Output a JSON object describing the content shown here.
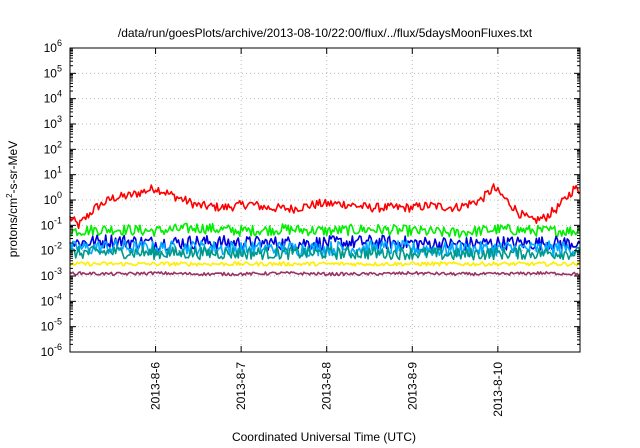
{
  "chart_data": {
    "type": "line",
    "title": "/data/run/goesPlots/archive/2013-08-10/22:00/flux/../flux/5daysMoonFluxes.txt",
    "xlabel": "Coordinated Universal Time (UTC)",
    "ylabel": {
      "prefix": "protons/cm",
      "superscript": "2",
      "suffix": "-s-sr-MeV"
    },
    "y_scale": "log",
    "ylim": [
      1e-06,
      1000000.0
    ],
    "y_ticks": [
      {
        "base": "10",
        "exp": "-6"
      },
      {
        "base": "10",
        "exp": "-5"
      },
      {
        "base": "10",
        "exp": "-4"
      },
      {
        "base": "10",
        "exp": "-3"
      },
      {
        "base": "10",
        "exp": "-2"
      },
      {
        "base": "10",
        "exp": "-1"
      },
      {
        "base": "10",
        "exp": "0"
      },
      {
        "base": "10",
        "exp": "1"
      },
      {
        "base": "10",
        "exp": "2"
      },
      {
        "base": "10",
        "exp": "3"
      },
      {
        "base": "10",
        "exp": "4"
      },
      {
        "base": "10",
        "exp": "5"
      },
      {
        "base": "10",
        "exp": "6"
      }
    ],
    "xlim": [
      "2013-08-05 23:00",
      "2013-08-10 22:00"
    ],
    "x_ticks": [
      "2013-8-6",
      "2013-8-7",
      "2013-8-8",
      "2013-8-9",
      "2013-8-10"
    ],
    "x_tick_values": [
      1,
      2,
      3,
      4,
      5
    ],
    "grid": true,
    "series": [
      {
        "color": "#ff0000",
        "x": [
          0.0,
          0.1,
          0.3,
          0.5,
          0.7,
          1.0,
          1.2,
          1.5,
          1.8,
          2.1,
          2.3,
          2.6,
          2.9,
          3.2,
          3.5,
          3.8,
          4.0,
          4.2,
          4.5,
          4.6,
          4.8,
          4.95,
          5.1,
          5.25,
          5.4,
          5.55,
          5.7,
          5.9,
          5.96
        ],
        "y": [
          0.2,
          0.1,
          0.5,
          1.2,
          1.5,
          3.0,
          1.5,
          0.6,
          0.5,
          0.7,
          0.5,
          0.45,
          0.7,
          0.7,
          0.5,
          0.5,
          0.5,
          0.6,
          0.5,
          0.6,
          1.0,
          3.0,
          1.0,
          0.3,
          0.15,
          0.2,
          0.5,
          3.0,
          2.0
        ]
      },
      {
        "color": "#00ee00",
        "x": [
          0.0,
          0.5,
          1.0,
          1.5,
          2.0,
          2.5,
          3.0,
          3.5,
          4.0,
          4.5,
          5.0,
          5.5,
          5.96
        ],
        "y": [
          0.06,
          0.07,
          0.06,
          0.08,
          0.06,
          0.07,
          0.06,
          0.07,
          0.06,
          0.05,
          0.07,
          0.06,
          0.06
        ]
      },
      {
        "color": "#0000dd",
        "x": [
          0.0,
          0.5,
          1.0,
          1.5,
          2.0,
          2.5,
          3.0,
          3.5,
          4.0,
          4.5,
          5.0,
          5.5,
          5.96
        ],
        "y": [
          0.02,
          0.025,
          0.02,
          0.022,
          0.02,
          0.02,
          0.02,
          0.022,
          0.02,
          0.018,
          0.02,
          0.02,
          0.02
        ]
      },
      {
        "color": "#00aaff",
        "x": [
          0.0,
          0.5,
          1.0,
          1.5,
          2.0,
          2.5,
          3.0,
          3.5,
          4.0,
          4.5,
          5.0,
          5.5,
          5.96
        ],
        "y": [
          0.012,
          0.014,
          0.012,
          0.013,
          0.012,
          0.012,
          0.012,
          0.013,
          0.012,
          0.011,
          0.012,
          0.012,
          0.012
        ]
      },
      {
        "color": "#009988",
        "x": [
          0.0,
          0.5,
          1.0,
          1.5,
          2.0,
          2.5,
          3.0,
          3.5,
          4.0,
          4.5,
          5.0,
          5.5,
          5.96
        ],
        "y": [
          0.008,
          0.009,
          0.008,
          0.008,
          0.008,
          0.008,
          0.008,
          0.008,
          0.008,
          0.007,
          0.008,
          0.008,
          0.008
        ]
      },
      {
        "color": "#ffee00",
        "x": [
          0.0,
          0.5,
          1.0,
          1.5,
          2.0,
          2.5,
          3.0,
          3.5,
          4.0,
          4.5,
          5.0,
          5.5,
          5.96
        ],
        "y": [
          0.003,
          0.003,
          0.003,
          0.003,
          0.003,
          0.003,
          0.003,
          0.003,
          0.003,
          0.003,
          0.003,
          0.003,
          0.003
        ]
      },
      {
        "color": "#993366",
        "x": [
          0.0,
          0.5,
          1.0,
          1.5,
          2.0,
          2.5,
          3.0,
          3.5,
          4.0,
          4.5,
          5.0,
          5.5,
          5.96
        ],
        "y": [
          0.0013,
          0.0012,
          0.0013,
          0.0012,
          0.0012,
          0.0013,
          0.0012,
          0.0012,
          0.0013,
          0.0012,
          0.0012,
          0.0013,
          0.0012
        ]
      }
    ]
  }
}
